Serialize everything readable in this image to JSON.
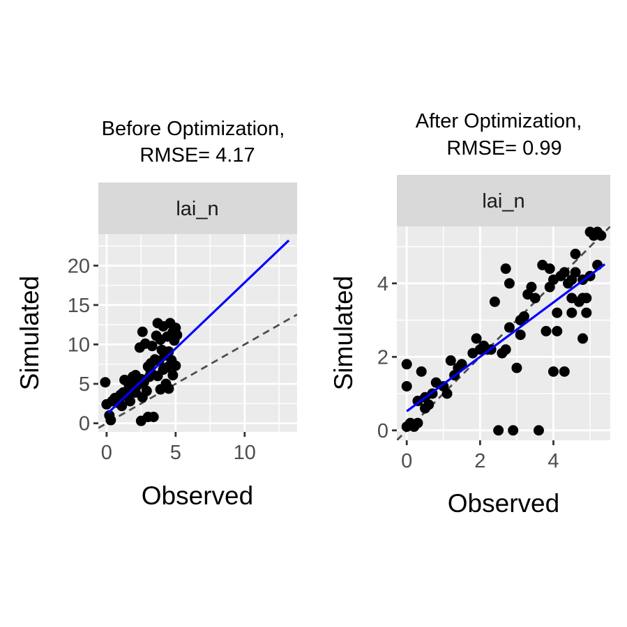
{
  "chart_data": [
    {
      "type": "scatter",
      "title_lines": [
        "Before Optimization,",
        "RMSE= 4.17"
      ],
      "facet_label": "lai_n",
      "xlabel": "Observed",
      "ylabel": "Simulated",
      "xlim": [
        -0.6,
        13.8
      ],
      "ylim": [
        -1.1,
        24.0
      ],
      "xticks": [
        0,
        5,
        10
      ],
      "yticks": [
        0,
        5,
        10,
        15,
        20
      ],
      "xminor": [
        2.5,
        7.5,
        12.5
      ],
      "yminor": [
        2.5,
        7.5,
        12.5,
        17.5,
        22.5
      ],
      "grid": true,
      "regression_line": {
        "color": "#0000ff",
        "from": [
          0.1,
          1.3
        ],
        "to": [
          13.2,
          23.2
        ]
      },
      "identity_line": {
        "color": "#4d4d4d",
        "style": "dashed",
        "from": [
          -0.6,
          -0.6
        ],
        "to": [
          13.8,
          13.8
        ]
      },
      "points": [
        [
          -0.1,
          5.2
        ],
        [
          0,
          2.4
        ],
        [
          0.2,
          1.0
        ],
        [
          0.3,
          0.4
        ],
        [
          0.4,
          2.8
        ],
        [
          0.6,
          3.2
        ],
        [
          0.8,
          2.6
        ],
        [
          1.0,
          3.6
        ],
        [
          1.1,
          2.2
        ],
        [
          1.3,
          5.5
        ],
        [
          1.4,
          4.0
        ],
        [
          1.5,
          3.4
        ],
        [
          1.6,
          5.0
        ],
        [
          1.7,
          2.8
        ],
        [
          1.8,
          4.6
        ],
        [
          1.9,
          5.9
        ],
        [
          2.0,
          4.1
        ],
        [
          2.1,
          6.1
        ],
        [
          2.1,
          3.9
        ],
        [
          2.2,
          5.6
        ],
        [
          2.3,
          4.9
        ],
        [
          2.4,
          9.6
        ],
        [
          2.5,
          0.3
        ],
        [
          2.6,
          11.6
        ],
        [
          2.6,
          3.3
        ],
        [
          2.7,
          5.2
        ],
        [
          2.8,
          10.1
        ],
        [
          2.9,
          4.1
        ],
        [
          3.0,
          7.2
        ],
        [
          3.0,
          0.8
        ],
        [
          3.1,
          5.9
        ],
        [
          3.2,
          6.5
        ],
        [
          3.3,
          9.8
        ],
        [
          3.4,
          0.8
        ],
        [
          3.5,
          8.1
        ],
        [
          3.6,
          11.1
        ],
        [
          3.7,
          12.7
        ],
        [
          3.7,
          6.0
        ],
        [
          3.8,
          7.9
        ],
        [
          3.9,
          10.6
        ],
        [
          3.9,
          4.3
        ],
        [
          4.0,
          9.3
        ],
        [
          4.1,
          12.3
        ],
        [
          4.1,
          6.8
        ],
        [
          4.2,
          8.6
        ],
        [
          4.3,
          5.0
        ],
        [
          4.4,
          11.0
        ],
        [
          4.4,
          7.1
        ],
        [
          4.5,
          9.1
        ],
        [
          4.5,
          4.4
        ],
        [
          4.6,
          12.7
        ],
        [
          4.7,
          8.0
        ],
        [
          4.8,
          11.6
        ],
        [
          4.8,
          6.1
        ],
        [
          4.9,
          10.5
        ],
        [
          5.0,
          12.1
        ],
        [
          5.0,
          7.3
        ],
        [
          5.1,
          11.2
        ],
        [
          2.2,
          4.8
        ],
        [
          1.2,
          3.9
        ],
        [
          0.9,
          3.0
        ],
        [
          2.5,
          5.6
        ],
        [
          3.2,
          7.6
        ],
        [
          4.2,
          8.9
        ]
      ]
    },
    {
      "type": "scatter",
      "title_lines": [
        "After Optimization,",
        "RMSE= 0.99"
      ],
      "facet_label": "lai_n",
      "xlabel": "Observed",
      "ylabel": "Simulated",
      "xlim": [
        -0.27,
        5.55
      ],
      "ylim": [
        -0.27,
        5.55
      ],
      "xticks": [
        0,
        2,
        4
      ],
      "yticks": [
        0,
        2,
        4
      ],
      "xminor": [
        1,
        3,
        5
      ],
      "yminor": [
        1,
        3,
        5
      ],
      "grid": true,
      "regression_line": {
        "color": "#0000ff",
        "from": [
          0,
          0.52
        ],
        "to": [
          5.4,
          4.52
        ]
      },
      "identity_line": {
        "color": "#4d4d4d",
        "style": "dashed",
        "from": [
          -0.27,
          -0.27
        ],
        "to": [
          5.55,
          5.55
        ]
      },
      "points": [
        [
          0,
          1.8
        ],
        [
          0,
          1.2
        ],
        [
          0,
          0.1
        ],
        [
          0.1,
          0.2
        ],
        [
          0.2,
          0.1
        ],
        [
          0.3,
          0.2
        ],
        [
          0.3,
          0.8
        ],
        [
          0.4,
          1.6
        ],
        [
          0.5,
          0.9
        ],
        [
          0.6,
          0.7
        ],
        [
          0.7,
          1.0
        ],
        [
          0.8,
          1.3
        ],
        [
          1.1,
          1.0
        ],
        [
          1.2,
          1.9
        ],
        [
          1.3,
          1.5
        ],
        [
          1.4,
          1.7
        ],
        [
          1.5,
          1.8
        ],
        [
          1.8,
          2.1
        ],
        [
          1.9,
          2.5
        ],
        [
          2.0,
          2.2
        ],
        [
          2.1,
          2.3
        ],
        [
          2.3,
          2.2
        ],
        [
          2.4,
          3.5
        ],
        [
          2.5,
          0
        ],
        [
          2.6,
          2.1
        ],
        [
          2.7,
          4.4
        ],
        [
          2.7,
          2.2
        ],
        [
          2.8,
          4.0
        ],
        [
          2.8,
          2.8
        ],
        [
          2.9,
          0
        ],
        [
          3.0,
          1.7
        ],
        [
          3.1,
          3.0
        ],
        [
          3.1,
          2.6
        ],
        [
          3.3,
          3.7
        ],
        [
          3.4,
          3.9
        ],
        [
          3.5,
          3.6
        ],
        [
          3.6,
          0.0
        ],
        [
          3.7,
          4.5
        ],
        [
          3.8,
          2.7
        ],
        [
          3.9,
          4.4
        ],
        [
          3.9,
          3.9
        ],
        [
          4.0,
          4.1
        ],
        [
          4.0,
          1.6
        ],
        [
          4.1,
          3.2
        ],
        [
          4.1,
          2.7
        ],
        [
          4.2,
          4.2
        ],
        [
          4.3,
          4.3
        ],
        [
          4.3,
          1.6
        ],
        [
          4.4,
          4.0
        ],
        [
          4.5,
          3.6
        ],
        [
          4.5,
          3.2
        ],
        [
          4.6,
          4.3
        ],
        [
          4.6,
          4.8
        ],
        [
          4.7,
          3.5
        ],
        [
          4.8,
          4.1
        ],
        [
          4.8,
          3.6
        ],
        [
          4.8,
          2.5
        ],
        [
          4.9,
          3.6
        ],
        [
          5.0,
          4.2
        ],
        [
          5.0,
          5.4
        ],
        [
          5.1,
          5.3
        ],
        [
          5.2,
          4.5
        ],
        [
          5.3,
          5.3
        ],
        [
          5.2,
          5.4
        ],
        [
          4.9,
          3.2
        ],
        [
          4.5,
          4.1
        ],
        [
          3.2,
          3.1
        ],
        [
          2.2,
          2.2
        ],
        [
          1.0,
          1.2
        ],
        [
          0.5,
          0.6
        ]
      ]
    }
  ]
}
